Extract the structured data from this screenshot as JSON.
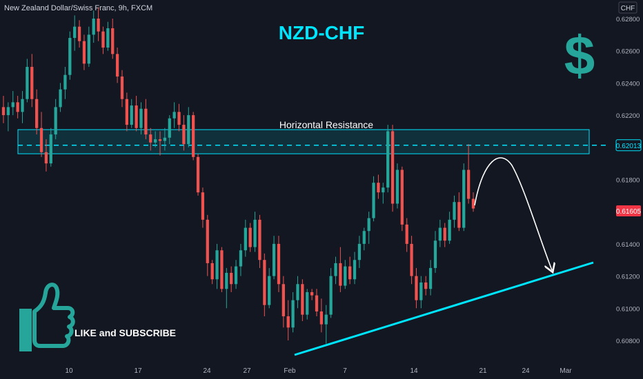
{
  "header": {
    "symbol_title": "New Zealand Dollar/Swiss Franc, 9h, FXCM"
  },
  "title": "NZD-CHF",
  "currency_label": "CHF",
  "dollar_glyph": "$",
  "annotations": {
    "resistance_label": "Horizontal Resistance",
    "cta": "LIKE and SUBSCRIBE"
  },
  "colors": {
    "background": "#131722",
    "up": "#26a69a",
    "down": "#ef5350",
    "accent": "#00e5ff",
    "price_tag": "#f23645",
    "thumb": "#26a69a",
    "dollar": "#26a69a"
  },
  "icons": {
    "thumb": "thumbs-up-icon",
    "dollar": "dollar-sign-icon"
  },
  "chart_data": {
    "type": "candlestick",
    "timeframe": "9h",
    "x_ticks": [
      "10",
      "17",
      "24",
      "27",
      "Feb",
      "7",
      "14",
      "21",
      "24",
      "Mar"
    ],
    "y_ticks": [
      "0.62800",
      "0.62600",
      "0.62400",
      "0.62200",
      "0.62000",
      "0.61800",
      "0.61600",
      "0.61400",
      "0.61200",
      "0.61000",
      "0.60800"
    ],
    "ylim": [
      0.6075,
      0.6288
    ],
    "current_price": "0.61605",
    "resistance_price": "0.62013",
    "resistance_zone": [
      0.6196,
      0.6211
    ],
    "candles": [
      [
        0.6225,
        0.6232,
        0.6215,
        0.622
      ],
      [
        0.622,
        0.6228,
        0.621,
        0.6225
      ],
      [
        0.6225,
        0.6235,
        0.622,
        0.6228
      ],
      [
        0.6228,
        0.6232,
        0.6218,
        0.6222
      ],
      [
        0.6222,
        0.6235,
        0.6215,
        0.623
      ],
      [
        0.623,
        0.6255,
        0.6228,
        0.625
      ],
      [
        0.625,
        0.6258,
        0.6225,
        0.623
      ],
      [
        0.623,
        0.6236,
        0.6208,
        0.6212
      ],
      [
        0.6212,
        0.6222,
        0.6194,
        0.6197
      ],
      [
        0.6197,
        0.6205,
        0.6185,
        0.619
      ],
      [
        0.619,
        0.6212,
        0.6188,
        0.6208
      ],
      [
        0.6208,
        0.623,
        0.6205,
        0.6225
      ],
      [
        0.6225,
        0.624,
        0.6222,
        0.6236
      ],
      [
        0.6236,
        0.625,
        0.623,
        0.6245
      ],
      [
        0.6245,
        0.6272,
        0.6242,
        0.6268
      ],
      [
        0.6268,
        0.6282,
        0.626,
        0.6275
      ],
      [
        0.6275,
        0.6279,
        0.6262,
        0.6266
      ],
      [
        0.6266,
        0.627,
        0.6248,
        0.6252
      ],
      [
        0.6252,
        0.6275,
        0.625,
        0.627
      ],
      [
        0.627,
        0.6285,
        0.6265,
        0.628
      ],
      [
        0.628,
        0.6287,
        0.6266,
        0.6272
      ],
      [
        0.6272,
        0.6275,
        0.6258,
        0.6262
      ],
      [
        0.6262,
        0.6278,
        0.626,
        0.6274
      ],
      [
        0.6274,
        0.628,
        0.6255,
        0.6258
      ],
      [
        0.6258,
        0.6262,
        0.624,
        0.6244
      ],
      [
        0.6244,
        0.6248,
        0.6225,
        0.623
      ],
      [
        0.623,
        0.6234,
        0.621,
        0.6214
      ],
      [
        0.6214,
        0.623,
        0.6212,
        0.6226
      ],
      [
        0.6226,
        0.6232,
        0.621,
        0.6212
      ],
      [
        0.6212,
        0.6228,
        0.6208,
        0.6224
      ],
      [
        0.6224,
        0.623,
        0.6205,
        0.6208
      ],
      [
        0.6208,
        0.6212,
        0.6198,
        0.6203
      ],
      [
        0.6203,
        0.621,
        0.62,
        0.6205
      ],
      [
        0.6205,
        0.621,
        0.6195,
        0.6204
      ],
      [
        0.6204,
        0.6212,
        0.6198,
        0.6206
      ],
      [
        0.6206,
        0.622,
        0.6202,
        0.6218
      ],
      [
        0.6218,
        0.6228,
        0.6212,
        0.6222
      ],
      [
        0.6222,
        0.6227,
        0.621,
        0.6214
      ],
      [
        0.6214,
        0.622,
        0.6198,
        0.6202
      ],
      [
        0.6202,
        0.6225,
        0.62,
        0.622
      ],
      [
        0.622,
        0.6222,
        0.6192,
        0.6194
      ],
      [
        0.6194,
        0.6196,
        0.617,
        0.6172
      ],
      [
        0.6172,
        0.6175,
        0.615,
        0.6155
      ],
      [
        0.6155,
        0.6158,
        0.612,
        0.6128
      ],
      [
        0.6128,
        0.613,
        0.6115,
        0.6118
      ],
      [
        0.6118,
        0.614,
        0.6112,
        0.6136
      ],
      [
        0.6136,
        0.6138,
        0.611,
        0.6112
      ],
      [
        0.6112,
        0.6125,
        0.61,
        0.6122
      ],
      [
        0.6122,
        0.6126,
        0.611,
        0.6115
      ],
      [
        0.6115,
        0.613,
        0.6112,
        0.6126
      ],
      [
        0.6126,
        0.614,
        0.612,
        0.6136
      ],
      [
        0.6136,
        0.6155,
        0.6132,
        0.615
      ],
      [
        0.615,
        0.6153,
        0.6135,
        0.6138
      ],
      [
        0.6138,
        0.616,
        0.6135,
        0.6155
      ],
      [
        0.6155,
        0.6158,
        0.6125,
        0.613
      ],
      [
        0.613,
        0.6134,
        0.6095,
        0.6102
      ],
      [
        0.6102,
        0.6125,
        0.61,
        0.612
      ],
      [
        0.612,
        0.6145,
        0.6118,
        0.614
      ],
      [
        0.614,
        0.6145,
        0.611,
        0.6115
      ],
      [
        0.6115,
        0.612,
        0.6088,
        0.6095
      ],
      [
        0.6095,
        0.6105,
        0.608,
        0.6088
      ],
      [
        0.6088,
        0.611,
        0.6085,
        0.6105
      ],
      [
        0.6105,
        0.612,
        0.61,
        0.6115
      ],
      [
        0.6115,
        0.6118,
        0.6092,
        0.6096
      ],
      [
        0.6096,
        0.6112,
        0.6093,
        0.611
      ],
      [
        0.611,
        0.6112,
        0.6105,
        0.6108
      ],
      [
        0.6108,
        0.6112,
        0.6095,
        0.6098
      ],
      [
        0.6098,
        0.6106,
        0.6085,
        0.609
      ],
      [
        0.609,
        0.6102,
        0.6078,
        0.6096
      ],
      [
        0.6096,
        0.6125,
        0.6094,
        0.612
      ],
      [
        0.612,
        0.6132,
        0.6115,
        0.6128
      ],
      [
        0.6128,
        0.6138,
        0.611,
        0.6114
      ],
      [
        0.6114,
        0.613,
        0.6112,
        0.6126
      ],
      [
        0.6126,
        0.6132,
        0.6115,
        0.6118
      ],
      [
        0.6118,
        0.6135,
        0.6115,
        0.613
      ],
      [
        0.613,
        0.6145,
        0.6125,
        0.614
      ],
      [
        0.614,
        0.615,
        0.6136,
        0.6148
      ],
      [
        0.6148,
        0.616,
        0.614,
        0.6156
      ],
      [
        0.6156,
        0.6182,
        0.6154,
        0.6178
      ],
      [
        0.6178,
        0.6183,
        0.6168,
        0.6172
      ],
      [
        0.6172,
        0.6178,
        0.6165,
        0.6175
      ],
      [
        0.6175,
        0.6214,
        0.6172,
        0.621
      ],
      [
        0.621,
        0.6214,
        0.616,
        0.6165
      ],
      [
        0.6165,
        0.619,
        0.6162,
        0.6186
      ],
      [
        0.6186,
        0.6188,
        0.6148,
        0.6152
      ],
      [
        0.6152,
        0.6156,
        0.6135,
        0.614
      ],
      [
        0.614,
        0.6145,
        0.6115,
        0.612
      ],
      [
        0.612,
        0.6125,
        0.61,
        0.6105
      ],
      [
        0.6105,
        0.612,
        0.61,
        0.6116
      ],
      [
        0.6116,
        0.612,
        0.6108,
        0.6112
      ],
      [
        0.6112,
        0.613,
        0.6108,
        0.6125
      ],
      [
        0.6125,
        0.6148,
        0.6122,
        0.6142
      ],
      [
        0.6142,
        0.6155,
        0.6138,
        0.615
      ],
      [
        0.615,
        0.6153,
        0.6138,
        0.6142
      ],
      [
        0.6142,
        0.616,
        0.614,
        0.6155
      ],
      [
        0.6155,
        0.617,
        0.615,
        0.6166
      ],
      [
        0.6166,
        0.6172,
        0.6148,
        0.615
      ],
      [
        0.615,
        0.619,
        0.6148,
        0.6186
      ],
      [
        0.6186,
        0.6202,
        0.6165,
        0.6168
      ],
      [
        0.6168,
        0.6172,
        0.616,
        0.6162
      ]
    ],
    "trendline": [
      [
        0.6076,
        "27"
      ],
      [
        0.6127,
        "Mar"
      ]
    ],
    "projection": "arc from last candle up to resistance then down to trendline"
  }
}
